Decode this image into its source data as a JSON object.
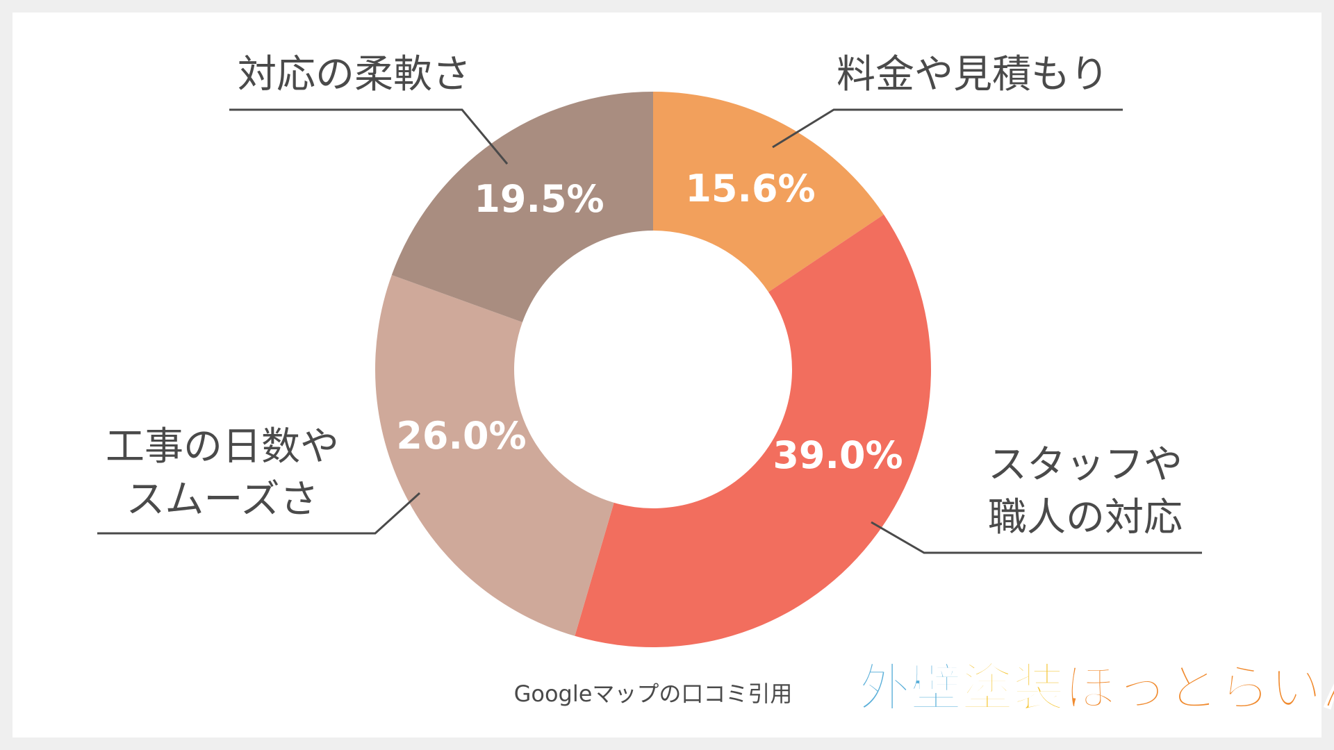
{
  "chart_data": {
    "type": "pie",
    "variant": "donut",
    "categories": [
      "料金や見積もり",
      "スタッフや職人の対応",
      "工事の日数やスムーズさ",
      "対応の柔軟さ"
    ],
    "values": [
      15.6,
      39.0,
      26.0,
      19.5
    ],
    "value_labels": [
      "15.6%",
      "39.0%",
      "26.0%",
      "19.5%"
    ],
    "label_lines": [
      [
        "料金や見積もり"
      ],
      [
        "スタッフや",
        "職人の対応"
      ],
      [
        "工事の日数や",
        "スムーズさ"
      ],
      [
        "対応の柔軟さ"
      ]
    ],
    "colors": [
      "#F2A05C",
      "#F26E5E",
      "#CFA99A",
      "#A98D80"
    ],
    "start": "12 o'clock, clockwise"
  },
  "source_note": "Googleマップの口コミ引用",
  "logo": {
    "parts": [
      {
        "text": "外壁",
        "color": "#5AAFD9"
      },
      {
        "text": "塗装",
        "color": "#F4C430"
      },
      {
        "text": "ほっとらいん",
        "color": "#F08A2E"
      }
    ]
  },
  "colors": {
    "frame_border": "#efefef",
    "background": "#ffffff",
    "text": "#4a4a4a",
    "leader_line": "#4a4a4a"
  }
}
